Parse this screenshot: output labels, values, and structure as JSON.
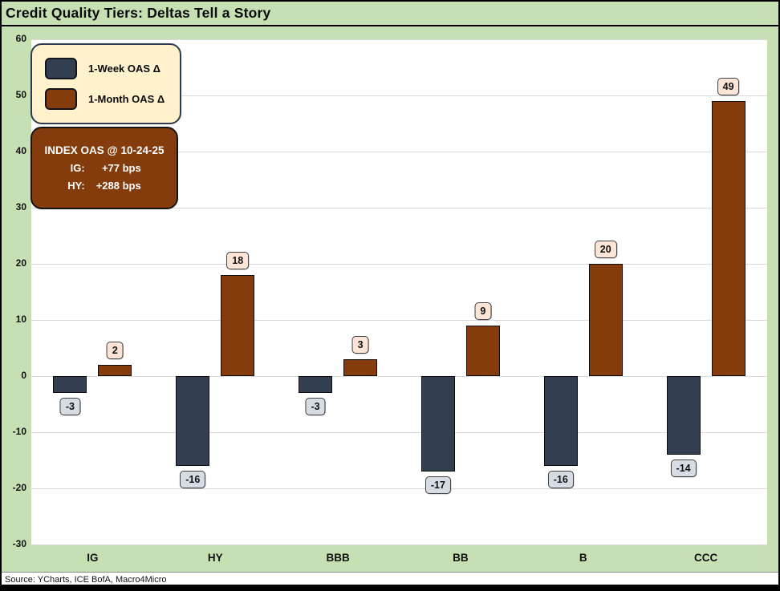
{
  "title": "Credit Quality Tiers: Deltas Tell a Story",
  "legend": {
    "items": [
      {
        "label": "1-Week OAS Δ",
        "color": "#333F50"
      },
      {
        "label": "1-Month OAS Δ",
        "color": "#843C0C"
      }
    ]
  },
  "info_box": {
    "title": "INDEX OAS @ 10-24-25",
    "rows": [
      {
        "label": "IG:",
        "value": "+77 bps"
      },
      {
        "label": "HY:",
        "value": "+288 bps"
      }
    ]
  },
  "source": "Source: YCharts, ICE BofA, Macro4Micro",
  "colors": {
    "page_background": "#C6E0B4",
    "plot_background": "#FFFFFF",
    "gridline": "#D9D9D9",
    "week_bar": "#333F50",
    "month_bar": "#843C0C",
    "positive_label_bg": "#FCE4D6",
    "negative_label_bg": "#D6DCE4",
    "legend_bg": "#FFF2CC"
  },
  "chart_data": {
    "type": "bar",
    "categories": [
      "IG",
      "HY",
      "BBB",
      "BB",
      "B",
      "CCC"
    ],
    "series": [
      {
        "name": "1-Week OAS Δ",
        "color": "#333F50",
        "values": [
          -3,
          -16,
          -3,
          -17,
          -16,
          -14
        ]
      },
      {
        "name": "1-Month OAS Δ",
        "color": "#843C0C",
        "values": [
          2,
          18,
          3,
          9,
          20,
          49
        ]
      }
    ],
    "title": "Credit Quality Tiers: Deltas Tell a Story",
    "xlabel": "",
    "ylabel": "",
    "ylim": [
      -30,
      60
    ],
    "ytick_step": 10,
    "yticks": [
      60,
      50,
      40,
      30,
      20,
      10,
      0,
      -10,
      -20,
      -30
    ],
    "grid": true,
    "legend_position": "top-left",
    "value_labels": true
  }
}
